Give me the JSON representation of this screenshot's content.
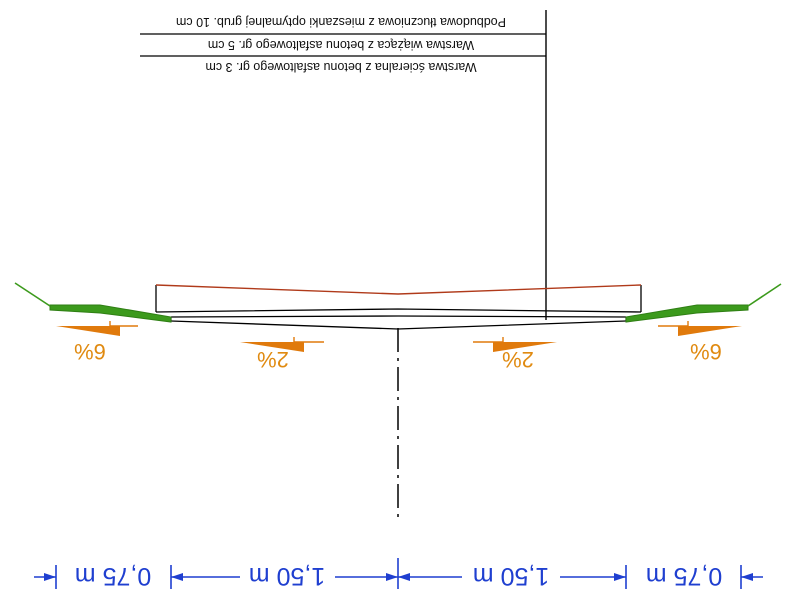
{
  "drawing": {
    "layers": [
      "Podbudowa tłuczniowa z mieszanki optymalnej grub. 10 cm",
      "Warstwa wiążąca z betonu asfaltowego gr. 5 cm",
      "Warstwa ścieralna z betonu asfaltowego gr. 3 cm"
    ],
    "slopes": {
      "shoulder_left": "6%",
      "lane_left": "2%",
      "lane_right": "2%",
      "shoulder_right": "6%"
    },
    "dimensions": {
      "shoulder_left": "0,75 m",
      "lane_left": "1,50 m",
      "lane_right": "1,50 m",
      "shoulder_right": "0,75 m"
    },
    "colors": {
      "line": "#000000",
      "subgrade": "#b03a1a",
      "grass": "#3c9a1c",
      "slope_arrow": "#e07a0c",
      "dimension": "#1f3fd0"
    }
  }
}
